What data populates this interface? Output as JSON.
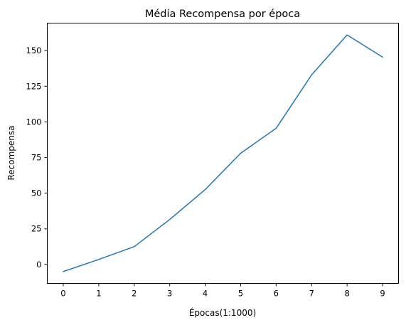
{
  "chart_data": {
    "type": "line",
    "title": "Média Recompensa por época",
    "xlabel": "Épocas(1:1000)",
    "ylabel": "Recompensa",
    "x": [
      0,
      1,
      2,
      3,
      4,
      5,
      6,
      7,
      8,
      9
    ],
    "series": [
      {
        "values": [
          -5,
          3.5,
          12.5,
          31.5,
          52.5,
          78,
          95.5,
          133,
          161,
          145.5
        ],
        "color": "#1f77b4"
      }
    ],
    "xticks": [
      "0",
      "1",
      "2",
      "3",
      "4",
      "5",
      "6",
      "7",
      "8",
      "9"
    ],
    "yticks": [
      "0",
      "25",
      "50",
      "75",
      "100",
      "125",
      "150"
    ],
    "xlim": [
      -0.45,
      9.45
    ],
    "ylim": [
      -13.3,
      169.3
    ],
    "grid": false,
    "legend": "none"
  }
}
